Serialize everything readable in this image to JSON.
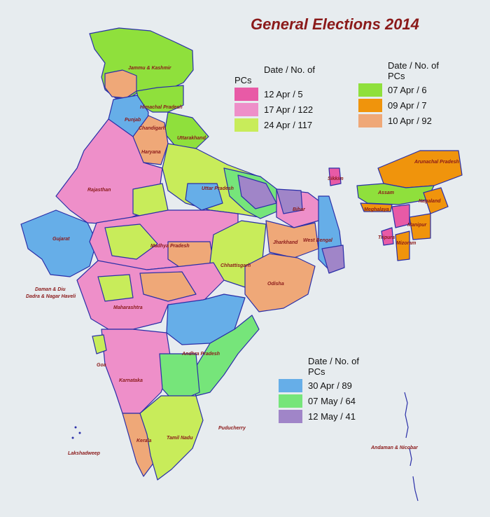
{
  "title": "General Elections 2014",
  "legends": [
    {
      "header_line1": "Date / No. of",
      "header_line2": "PCs",
      "entries": [
        {
          "label": "12 Apr  / 5",
          "color": "#e85aa6"
        },
        {
          "label": "17 Apr  / 122",
          "color": "#ee8fc9"
        },
        {
          "label": "24 Apr  / 117",
          "color": "#c8ec5a"
        }
      ]
    },
    {
      "header_line1": "Date / No. of",
      "header_line2": "PCs",
      "entries": [
        {
          "label": "07 Apr  / 6",
          "color": "#8fe03c"
        },
        {
          "label": "09 Apr  / 7",
          "color": "#f0940c"
        },
        {
          "label": "10 Apr  / 92",
          "color": "#efa878"
        }
      ]
    },
    {
      "header_line1": "Date / No. of",
      "header_line2": "PCs",
      "entries": [
        {
          "label": "30 Apr  / 89",
          "color": "#66aee8"
        },
        {
          "label": "07 May  / 64",
          "color": "#76e57a"
        },
        {
          "label": "12 May  / 41",
          "color": "#a085c8"
        }
      ]
    }
  ],
  "places": {
    "jammu_kashmir": "Jammu & Kashmir",
    "himachal": "Himachal Pradesh",
    "punjab": "Punjab",
    "chandigarh": "Chandigarh",
    "haryana": "Haryana",
    "uttarakhand": "Uttarakhand",
    "rajasthan": "Rajasthan",
    "uttar_pradesh": "Uttar Pradesh",
    "bihar": "Bihar",
    "sikkim": "Sikkim",
    "arunachal": "Arunachal Pradesh",
    "assam": "Assam",
    "meghalaya": "Meghalaya",
    "nagaland": "Nagaland",
    "manipur": "Manipur",
    "tripura": "Tripura",
    "mizoram": "Mizoram",
    "gujarat": "Gujarat",
    "madhya_pradesh": "Madhya Pradesh",
    "jharkhand": "Jharkhand",
    "west_bengal": "West Bengal",
    "chhattisgarh": "Chhattisgarh",
    "odisha": "Odisha",
    "daman_diu": "Daman & Diu",
    "dadra": "Dadra & Nagar Haveli",
    "maharashtra": "Maharashtra",
    "andhra": "Andhra Pradesh",
    "goa": "Goa",
    "karnataka": "Karnataka",
    "puducherry": "Puducherry",
    "kerala": "Kerala",
    "tamil_nadu": "Tamil Nadu",
    "lakshadweep": "Lakshadweep",
    "andaman": "Andaman & Nicobar"
  },
  "region_colors": {
    "pink": "#ee8fc9",
    "magenta": "#e85aa6",
    "yellowgreen": "#c8ec5a",
    "green": "#8fe03c",
    "orange": "#f0940c",
    "peach": "#efa878",
    "blue": "#66aee8",
    "lightgreen": "#76e57a",
    "purple": "#a085c8",
    "border": "#2a2fa8"
  }
}
